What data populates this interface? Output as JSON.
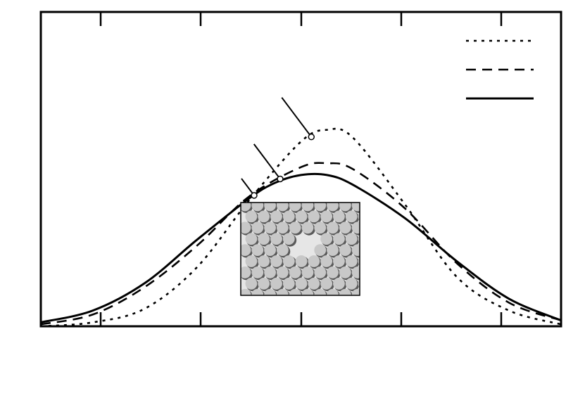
{
  "chart_data": {
    "type": "line",
    "title": "",
    "xlabel": "",
    "ylabel": "",
    "x_ticks": 5,
    "grid": false,
    "legend_position": "top-right",
    "series": [
      {
        "style": "dotted",
        "color": "#000000",
        "points": [
          [
            0.0,
            0.0
          ],
          [
            0.1,
            0.02
          ],
          [
            0.2,
            0.09
          ],
          [
            0.3,
            0.3
          ],
          [
            0.4,
            0.64
          ],
          [
            0.5,
            0.94
          ],
          [
            0.55,
            1.0
          ],
          [
            0.6,
            0.96
          ],
          [
            0.7,
            0.62
          ],
          [
            0.8,
            0.25
          ],
          [
            0.9,
            0.08
          ],
          [
            1.0,
            0.01
          ]
        ],
        "marker_at_x": 0.52
      },
      {
        "style": "dashed",
        "color": "#000000",
        "points": [
          [
            0.0,
            0.01
          ],
          [
            0.1,
            0.06
          ],
          [
            0.2,
            0.2
          ],
          [
            0.3,
            0.41
          ],
          [
            0.4,
            0.66
          ],
          [
            0.5,
            0.81
          ],
          [
            0.55,
            0.83
          ],
          [
            0.6,
            0.8
          ],
          [
            0.7,
            0.6
          ],
          [
            0.8,
            0.32
          ],
          [
            0.9,
            0.12
          ],
          [
            1.0,
            0.03
          ]
        ],
        "marker_at_x": 0.46
      },
      {
        "style": "solid",
        "color": "#000000",
        "points": [
          [
            0.0,
            0.02
          ],
          [
            0.1,
            0.08
          ],
          [
            0.2,
            0.22
          ],
          [
            0.3,
            0.44
          ],
          [
            0.4,
            0.65
          ],
          [
            0.45,
            0.73
          ],
          [
            0.5,
            0.77
          ],
          [
            0.55,
            0.77
          ],
          [
            0.6,
            0.72
          ],
          [
            0.7,
            0.55
          ],
          [
            0.8,
            0.33
          ],
          [
            0.9,
            0.14
          ],
          [
            1.0,
            0.03
          ]
        ],
        "marker_at_x": 0.41
      }
    ],
    "xlim": [
      0,
      1
    ],
    "ylim": [
      0,
      1.6
    ]
  },
  "inset": {
    "description": "lattice",
    "fill_color": "#c8c8c8",
    "shadow_color": "#5a5a5a",
    "rows": 9,
    "cols": 10
  }
}
